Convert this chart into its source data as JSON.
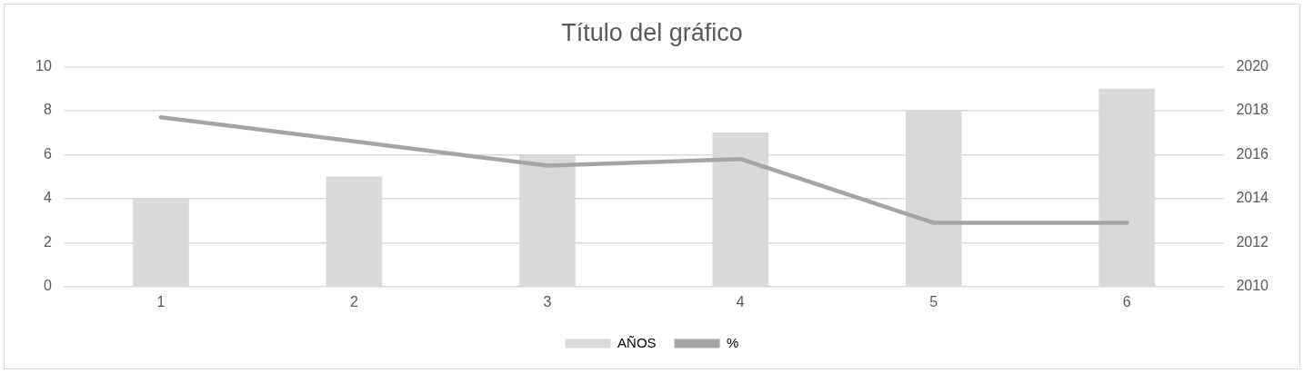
{
  "chart_data": {
    "type": "bar",
    "title": "Título del gráfico",
    "categories": [
      "1",
      "2",
      "3",
      "4",
      "5",
      "6"
    ],
    "series": [
      {
        "name": "AÑOS",
        "color": "#d9d9d9",
        "values": [
          4,
          5,
          6,
          7,
          8,
          9
        ]
      },
      {
        "name": "%",
        "type": "line",
        "axis": "y2",
        "color": "#a5a5a5",
        "values": [
          2017.7,
          2016.6,
          2015.5,
          2015.8,
          2012.9,
          2012.9
        ]
      }
    ],
    "ylim": [
      0,
      10
    ],
    "yticks": [
      0,
      2,
      4,
      6,
      8,
      10
    ],
    "y2lim": [
      2010,
      2020
    ],
    "y2ticks": [
      2010,
      2012,
      2014,
      2016,
      2018,
      2020
    ],
    "grid": "y",
    "legend": "bottom",
    "marker": "none",
    "line_style": "solid"
  }
}
